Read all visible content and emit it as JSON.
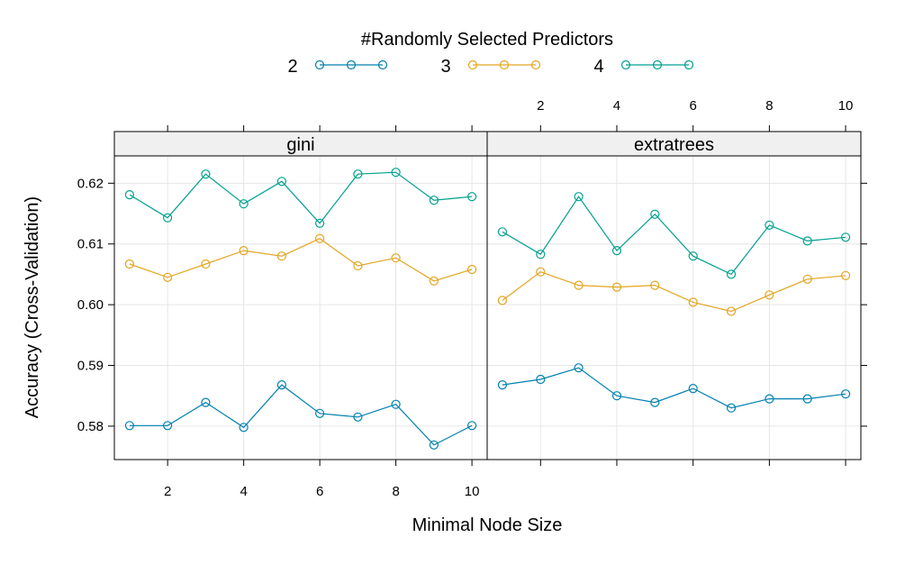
{
  "chart_data": {
    "type": "line",
    "legend_title": "#Randomly Selected Predictors",
    "legend_position": "top",
    "xlabel": "Minimal Node Size",
    "ylabel": "Accuracy (Cross-Validation)",
    "xlim": [
      0.6,
      10.4
    ],
    "ylim": [
      0.5745,
      0.6245
    ],
    "x_ticks": [
      2,
      4,
      6,
      8,
      10
    ],
    "y_ticks": [
      0.58,
      0.59,
      0.6,
      0.61,
      0.62
    ],
    "y_tick_labels": [
      "0.58",
      "0.59",
      "0.60",
      "0.61",
      "0.62"
    ],
    "grid": true,
    "x": [
      1,
      2,
      3,
      4,
      5,
      6,
      7,
      8,
      9,
      10
    ],
    "series_meta": [
      {
        "name": "2",
        "color": "#0080B1"
      },
      {
        "name": "3",
        "color": "#E3A521"
      },
      {
        "name": "4",
        "color": "#00A08F"
      }
    ],
    "panels": [
      {
        "strip": "gini",
        "series": [
          {
            "name": "2",
            "values": [
              0.5801,
              0.5801,
              0.5839,
              0.5798,
              0.5868,
              0.5821,
              0.5815,
              0.5836,
              0.5769,
              0.5801
            ]
          },
          {
            "name": "3",
            "values": [
              0.6067,
              0.6045,
              0.6067,
              0.6089,
              0.608,
              0.6109,
              0.6064,
              0.6077,
              0.6039,
              0.6058
            ]
          },
          {
            "name": "4",
            "values": [
              0.6181,
              0.6143,
              0.6215,
              0.6166,
              0.6203,
              0.6134,
              0.6215,
              0.6218,
              0.6172,
              0.6178
            ]
          }
        ]
      },
      {
        "strip": "extratrees",
        "series": [
          {
            "name": "2",
            "values": [
              0.5868,
              0.5877,
              0.5896,
              0.585,
              0.5839,
              0.5862,
              0.583,
              0.5845,
              0.5845,
              0.5853
            ]
          },
          {
            "name": "3",
            "values": [
              0.6007,
              0.6054,
              0.6032,
              0.6029,
              0.6032,
              0.6004,
              0.5989,
              0.6016,
              0.6042,
              0.6048
            ]
          },
          {
            "name": "4",
            "values": [
              0.612,
              0.6083,
              0.6178,
              0.6089,
              0.6149,
              0.608,
              0.605,
              0.6131,
              0.6105,
              0.6111
            ]
          }
        ]
      }
    ]
  }
}
